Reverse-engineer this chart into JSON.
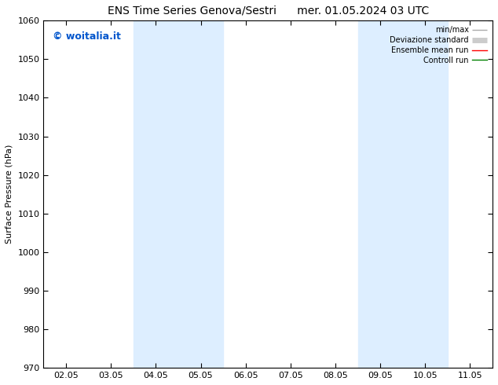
{
  "title_left": "ENS Time Series Genova/Sestri",
  "title_right": "mer. 01.05.2024 03 UTC",
  "ylabel": "Surface Pressure (hPa)",
  "ylim": [
    970,
    1060
  ],
  "yticks": [
    970,
    980,
    990,
    1000,
    1010,
    1020,
    1030,
    1040,
    1050,
    1060
  ],
  "x_labels": [
    "02.05",
    "03.05",
    "04.05",
    "05.05",
    "06.05",
    "07.05",
    "08.05",
    "09.05",
    "10.05",
    "11.05"
  ],
  "x_positions": [
    0,
    1,
    2,
    3,
    4,
    5,
    6,
    7,
    8,
    9
  ],
  "xlim": [
    -0.5,
    9.5
  ],
  "shaded_bands": [
    {
      "x_start": 1.5,
      "x_end": 3.5,
      "color": "#ddeeff"
    },
    {
      "x_start": 6.5,
      "x_end": 8.5,
      "color": "#ddeeff"
    }
  ],
  "legend_items": [
    {
      "label": "min/max",
      "color": "#aaaaaa",
      "lw": 1.0
    },
    {
      "label": "Deviazione standard",
      "color": "#cccccc",
      "lw": 5
    },
    {
      "label": "Ensemble mean run",
      "color": "red",
      "lw": 1.0
    },
    {
      "label": "Controll run",
      "color": "green",
      "lw": 1.0
    }
  ],
  "watermark_text": "© woitalia.it",
  "watermark_color": "#0055cc",
  "watermark_fontsize": 9,
  "background_color": "#ffffff",
  "title_fontsize": 10,
  "ylabel_fontsize": 8,
  "tick_fontsize": 8,
  "legend_fontsize": 7
}
